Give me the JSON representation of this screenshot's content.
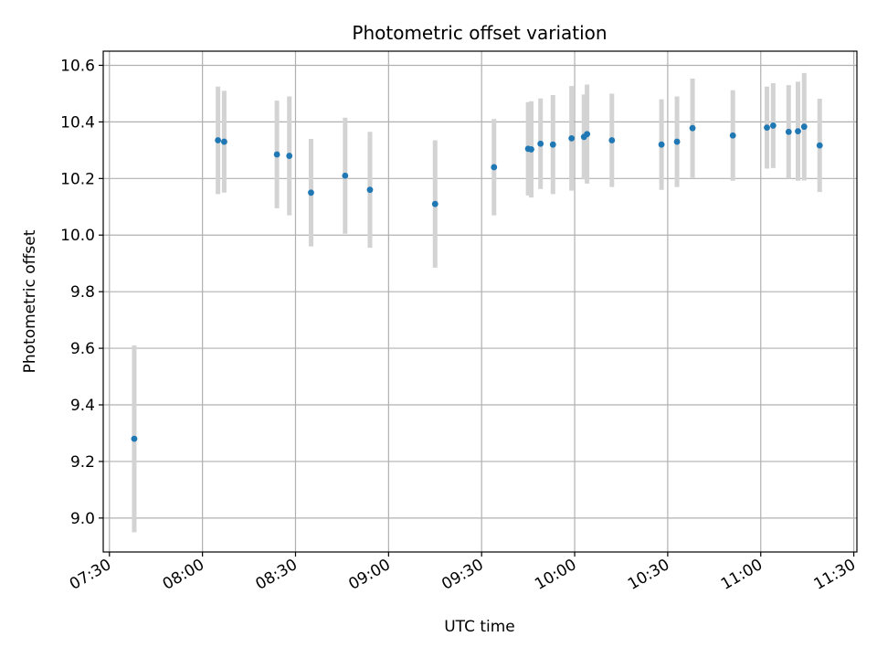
{
  "chart_data": {
    "type": "scatter",
    "title": "Photometric offset variation",
    "xlabel": "UTC time",
    "ylabel": "Photometric offset",
    "x_ticks": [
      "07:30",
      "08:00",
      "08:30",
      "09:00",
      "09:30",
      "10:00",
      "10:30",
      "11:00",
      "11:30"
    ],
    "y_ticks": [
      "9.0",
      "9.2",
      "9.4",
      "9.6",
      "9.8",
      "10.0",
      "10.2",
      "10.4",
      "10.6"
    ],
    "ylim": [
      8.88,
      10.65
    ],
    "xlim": [
      "07:28",
      "11:31"
    ],
    "grid": true,
    "colors": {
      "point": "#1f77b4",
      "errorbar": "#d3d3d3",
      "grid": "#b0b0b0"
    },
    "points": [
      {
        "time": "07:38",
        "value": 9.28,
        "err": 0.33
      },
      {
        "time": "08:05",
        "value": 10.335,
        "err": 0.19
      },
      {
        "time": "08:07",
        "value": 10.33,
        "err": 0.18
      },
      {
        "time": "08:24",
        "value": 10.285,
        "err": 0.19
      },
      {
        "time": "08:28",
        "value": 10.28,
        "err": 0.21
      },
      {
        "time": "08:35",
        "value": 10.15,
        "err": 0.19
      },
      {
        "time": "08:46",
        "value": 10.21,
        "err": 0.205
      },
      {
        "time": "08:54",
        "value": 10.16,
        "err": 0.205
      },
      {
        "time": "09:15",
        "value": 10.11,
        "err": 0.225
      },
      {
        "time": "09:34",
        "value": 10.24,
        "err": 0.17
      },
      {
        "time": "09:45",
        "value": 10.305,
        "err": 0.165
      },
      {
        "time": "09:46",
        "value": 10.303,
        "err": 0.17
      },
      {
        "time": "09:49",
        "value": 10.323,
        "err": 0.16
      },
      {
        "time": "09:53",
        "value": 10.32,
        "err": 0.175
      },
      {
        "time": "09:59",
        "value": 10.342,
        "err": 0.185
      },
      {
        "time": "10:03",
        "value": 10.347,
        "err": 0.15
      },
      {
        "time": "10:04",
        "value": 10.357,
        "err": 0.175
      },
      {
        "time": "10:12",
        "value": 10.335,
        "err": 0.165
      },
      {
        "time": "10:28",
        "value": 10.32,
        "err": 0.16
      },
      {
        "time": "10:33",
        "value": 10.33,
        "err": 0.16
      },
      {
        "time": "10:38",
        "value": 10.378,
        "err": 0.175
      },
      {
        "time": "10:51",
        "value": 10.352,
        "err": 0.16
      },
      {
        "time": "11:02",
        "value": 10.38,
        "err": 0.145
      },
      {
        "time": "11:04",
        "value": 10.387,
        "err": 0.15
      },
      {
        "time": "11:09",
        "value": 10.365,
        "err": 0.165
      },
      {
        "time": "11:12",
        "value": 10.367,
        "err": 0.175
      },
      {
        "time": "11:14",
        "value": 10.383,
        "err": 0.19
      },
      {
        "time": "11:19",
        "value": 10.317,
        "err": 0.165
      }
    ]
  }
}
